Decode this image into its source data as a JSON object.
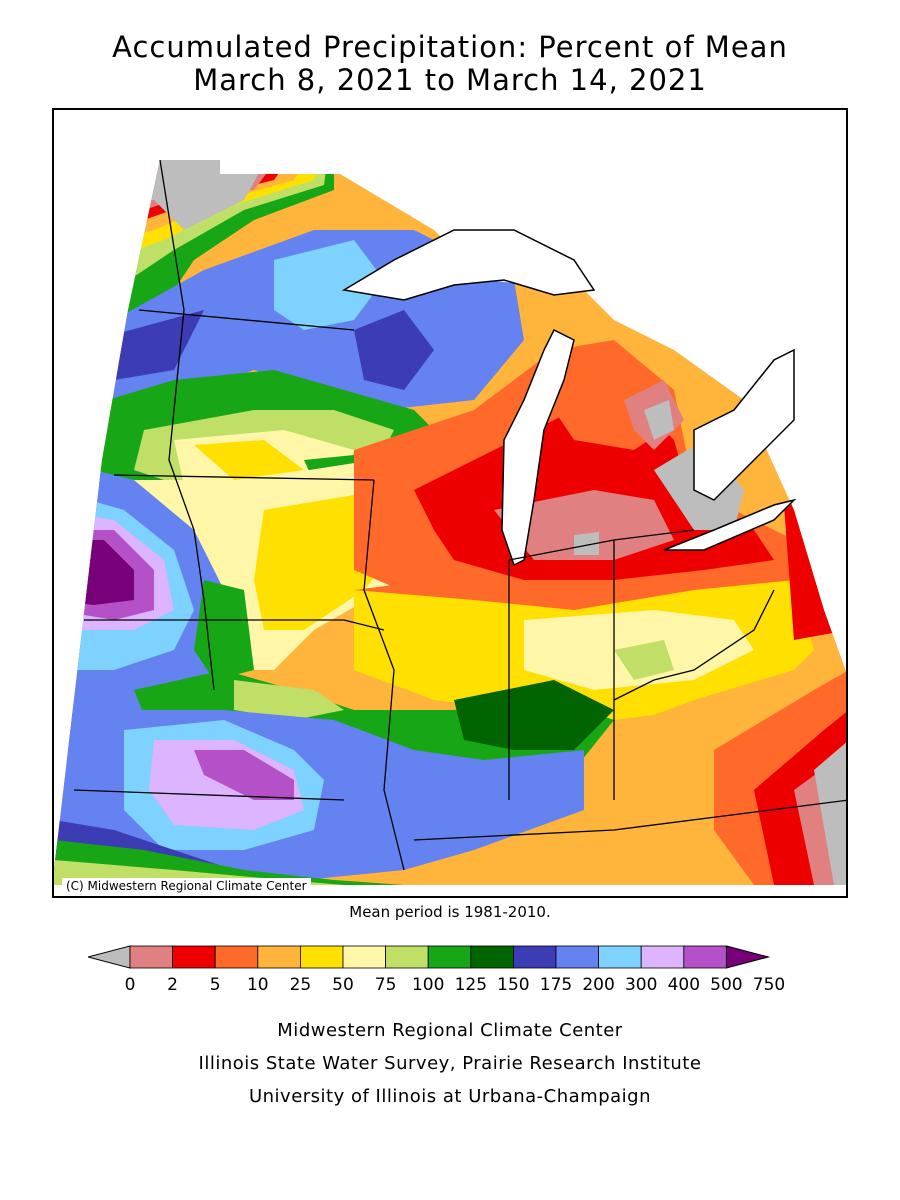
{
  "title_line1": "Accumulated Precipitation: Percent of Mean",
  "title_line2": "March 8, 2021 to March 14, 2021",
  "map_copyright": "(C) Midwestern Regional Climate Center",
  "mean_period_note": "Mean period is 1981-2010.",
  "legend": {
    "tick_labels": [
      "0",
      "2",
      "5",
      "10",
      "25",
      "50",
      "75",
      "100",
      "125",
      "150",
      "175",
      "200",
      "300",
      "400",
      "500",
      "750"
    ],
    "colors": [
      "#bdbdbd",
      "#e08080",
      "#ee0000",
      "#ff6a2a",
      "#ffb43c",
      "#ffe000",
      "#fff6a8",
      "#bfdf66",
      "#16a616",
      "#006400",
      "#3c3cb4",
      "#6482f0",
      "#7ed2ff",
      "#dcb4ff",
      "#b450c8",
      "#780078"
    ]
  },
  "footer": {
    "line1": "Midwestern Regional Climate Center",
    "line2": "Illinois State Water Survey, Prairie Research Institute",
    "line3": "University of Illinois at Urbana-Champaign"
  }
}
